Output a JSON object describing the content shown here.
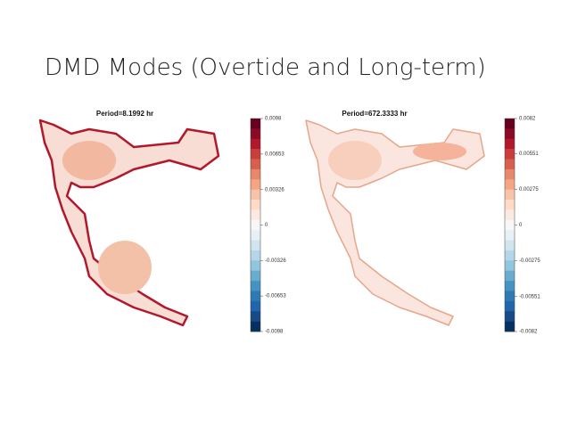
{
  "title": "DMD Modes (Overtide and Long-term)",
  "panels": [
    {
      "title": "Period=8.1992 hr",
      "colorbar": {
        "lim": [
          -0.0098,
          0.0098
        ],
        "ticks": [
          0.0098,
          0.00653,
          0.00326,
          0,
          -0.00326,
          -0.00653,
          -0.0098
        ]
      }
    },
    {
      "title": "Period=672.3333 hr",
      "colorbar": {
        "lim": [
          -0.0082,
          0.0082
        ],
        "ticks": [
          0.0082,
          0.00551,
          0.00275,
          0,
          -0.00275,
          -0.00551,
          -0.0082
        ]
      }
    }
  ]
}
